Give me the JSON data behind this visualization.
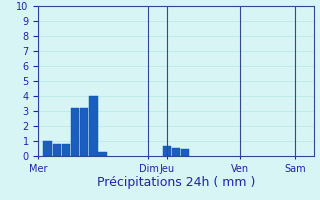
{
  "title": "",
  "xlabel": "Précipitations 24h ( mm )",
  "ylabel": "",
  "background_color": "#d8f5f5",
  "bar_color": "#1a5fbf",
  "bar_edge_color": "#1050aa",
  "grid_color": "#b8e8e8",
  "axis_line_color": "#334499",
  "ylim": [
    0,
    10
  ],
  "yticks": [
    0,
    1,
    2,
    3,
    4,
    5,
    6,
    7,
    8,
    9,
    10
  ],
  "day_labels": [
    "Mer",
    "Dim",
    "Jeu",
    "Ven",
    "Sam"
  ],
  "day_tick_positions": [
    0,
    12,
    14,
    22,
    28
  ],
  "vline_positions": [
    0,
    12,
    14,
    22,
    28
  ],
  "bar_x": [
    1,
    2,
    3,
    4,
    5,
    6,
    7,
    14,
    15,
    16
  ],
  "bar_heights": [
    1.0,
    0.8,
    0.8,
    3.2,
    3.2,
    4.0,
    0.3,
    0.7,
    0.55,
    0.45
  ],
  "xlim": [
    0,
    30
  ],
  "bar_width": 0.9,
  "xlabel_fontsize": 9,
  "tick_fontsize": 7,
  "label_color": "#2222aa",
  "spine_color": "#334499"
}
